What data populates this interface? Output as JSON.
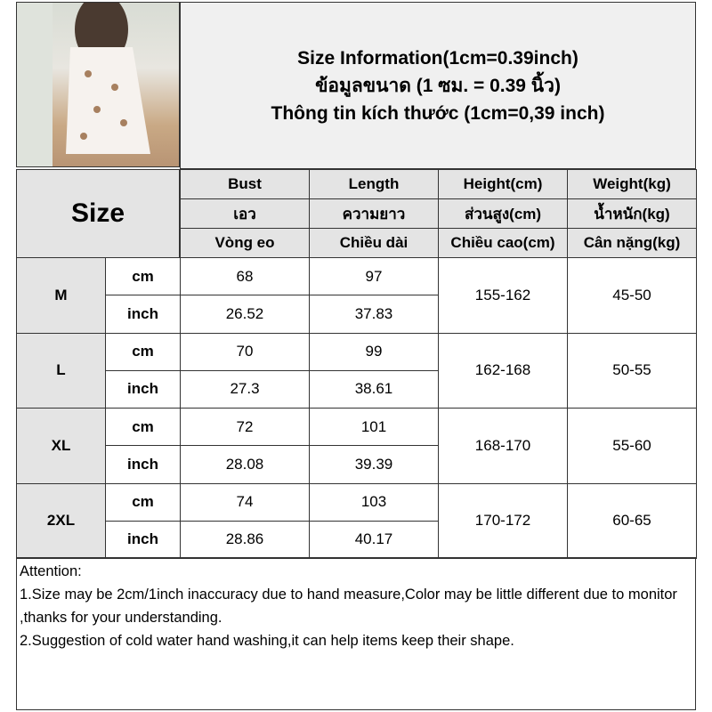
{
  "title_lines": [
    "Size Information(1cm=0.39inch)",
    "ข้อมูลขนาด (1 ซม. = 0.39 นิ้ว)",
    "Thông tin kích thước (1cm=0,39 inch)"
  ],
  "size_header": "Size",
  "columns": [
    {
      "en": "Bust",
      "th": "เอว",
      "vi": "Vòng eo"
    },
    {
      "en": "Length",
      "th": "ความยาว",
      "vi": "Chiều dài"
    },
    {
      "en": "Height(cm)",
      "th": "ส่วนสูง(cm)",
      "vi": "Chiều cao(cm)"
    },
    {
      "en": "Weight(kg)",
      "th": "น้ำหนัก(kg)",
      "vi": "Cân nặng(kg)"
    }
  ],
  "units": {
    "cm": "cm",
    "inch": "inch"
  },
  "rows": [
    {
      "size": "M",
      "cm": [
        "68",
        "97"
      ],
      "inch": [
        "26.52",
        "37.83"
      ],
      "height": "155-162",
      "weight": "45-50"
    },
    {
      "size": "L",
      "cm": [
        "70",
        "99"
      ],
      "inch": [
        "27.3",
        "38.61"
      ],
      "height": "162-168",
      "weight": "50-55"
    },
    {
      "size": "XL",
      "cm": [
        "72",
        "101"
      ],
      "inch": [
        "28.08",
        "39.39"
      ],
      "height": "168-170",
      "weight": "55-60"
    },
    {
      "size": "2XL",
      "cm": [
        "74",
        "103"
      ],
      "inch": [
        "28.86",
        "40.17"
      ],
      "height": "170-172",
      "weight": "60-65"
    }
  ],
  "attention": [
    "Attention:",
    "1.Size may be 2cm/1inch inaccuracy due to hand measure,Color may be little different due to monitor ,thanks for your understanding.",
    "2.Suggestion of cold water hand washing,it can help items keep their shape."
  ]
}
